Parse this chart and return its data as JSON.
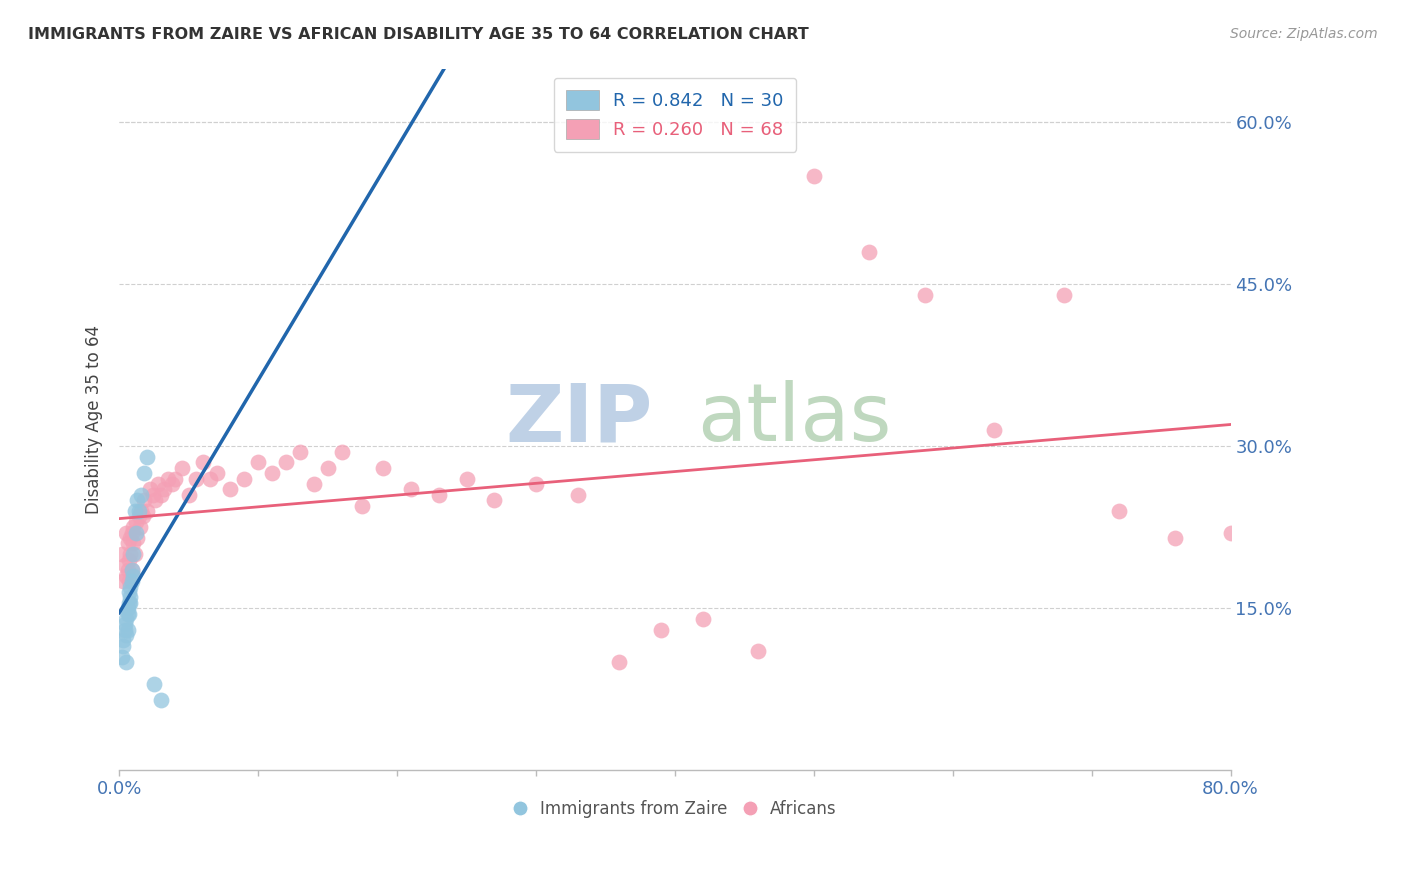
{
  "title": "IMMIGRANTS FROM ZAIRE VS AFRICAN DISABILITY AGE 35 TO 64 CORRELATION CHART",
  "source": "Source: ZipAtlas.com",
  "ylabel": "Disability Age 35 to 64",
  "x_tick_labels_ends": [
    "0.0%",
    "80.0%"
  ],
  "x_tick_values": [
    0.0,
    0.1,
    0.2,
    0.3,
    0.4,
    0.5,
    0.6,
    0.7,
    0.8
  ],
  "y_tick_labels": [
    "15.0%",
    "30.0%",
    "45.0%",
    "60.0%"
  ],
  "y_tick_values": [
    0.15,
    0.3,
    0.45,
    0.6
  ],
  "xlim": [
    0.0,
    0.8
  ],
  "ylim": [
    0.0,
    0.65
  ],
  "legend1_R": "0.842",
  "legend1_N": "30",
  "legend2_R": "0.260",
  "legend2_N": "68",
  "legend1_label": "Immigrants from Zaire",
  "legend2_label": "Africans",
  "color_blue": "#92c5de",
  "color_pink": "#f4a0b5",
  "color_line_blue": "#2166ac",
  "color_line_pink": "#e8607a",
  "color_axis_label": "#4575b4",
  "watermark_zip": "ZIP",
  "watermark_atlas": "atlas",
  "watermark_color_zip": "#c8d8f0",
  "watermark_color_atlas": "#d5e8d0",
  "background_color": "#ffffff",
  "grid_color": "#d0d0d0",
  "zaire_x": [
    0.002,
    0.003,
    0.003,
    0.004,
    0.004,
    0.005,
    0.005,
    0.005,
    0.006,
    0.006,
    0.006,
    0.007,
    0.007,
    0.007,
    0.008,
    0.008,
    0.008,
    0.009,
    0.009,
    0.01,
    0.01,
    0.011,
    0.012,
    0.013,
    0.014,
    0.016,
    0.018,
    0.02,
    0.025,
    0.03
  ],
  "zaire_y": [
    0.105,
    0.12,
    0.115,
    0.13,
    0.135,
    0.125,
    0.14,
    0.1,
    0.145,
    0.13,
    0.15,
    0.145,
    0.155,
    0.165,
    0.155,
    0.16,
    0.17,
    0.175,
    0.185,
    0.18,
    0.2,
    0.24,
    0.22,
    0.25,
    0.24,
    0.255,
    0.275,
    0.29,
    0.08,
    0.065
  ],
  "african_x": [
    0.002,
    0.003,
    0.004,
    0.005,
    0.005,
    0.006,
    0.006,
    0.007,
    0.007,
    0.008,
    0.008,
    0.009,
    0.009,
    0.01,
    0.01,
    0.011,
    0.012,
    0.013,
    0.014,
    0.015,
    0.016,
    0.017,
    0.018,
    0.02,
    0.022,
    0.024,
    0.026,
    0.028,
    0.03,
    0.032,
    0.035,
    0.038,
    0.04,
    0.045,
    0.05,
    0.055,
    0.06,
    0.065,
    0.07,
    0.08,
    0.09,
    0.1,
    0.11,
    0.12,
    0.13,
    0.14,
    0.15,
    0.16,
    0.175,
    0.19,
    0.21,
    0.23,
    0.25,
    0.27,
    0.3,
    0.33,
    0.36,
    0.39,
    0.42,
    0.46,
    0.5,
    0.54,
    0.58,
    0.63,
    0.68,
    0.72,
    0.76,
    0.8
  ],
  "african_y": [
    0.2,
    0.175,
    0.19,
    0.18,
    0.22,
    0.185,
    0.21,
    0.175,
    0.195,
    0.2,
    0.215,
    0.185,
    0.22,
    0.21,
    0.225,
    0.2,
    0.23,
    0.215,
    0.235,
    0.225,
    0.24,
    0.235,
    0.25,
    0.24,
    0.26,
    0.255,
    0.25,
    0.265,
    0.255,
    0.26,
    0.27,
    0.265,
    0.27,
    0.28,
    0.255,
    0.27,
    0.285,
    0.27,
    0.275,
    0.26,
    0.27,
    0.285,
    0.275,
    0.285,
    0.295,
    0.265,
    0.28,
    0.295,
    0.245,
    0.28,
    0.26,
    0.255,
    0.27,
    0.25,
    0.265,
    0.255,
    0.1,
    0.13,
    0.14,
    0.11,
    0.55,
    0.48,
    0.44,
    0.315,
    0.44,
    0.24,
    0.215,
    0.22
  ]
}
